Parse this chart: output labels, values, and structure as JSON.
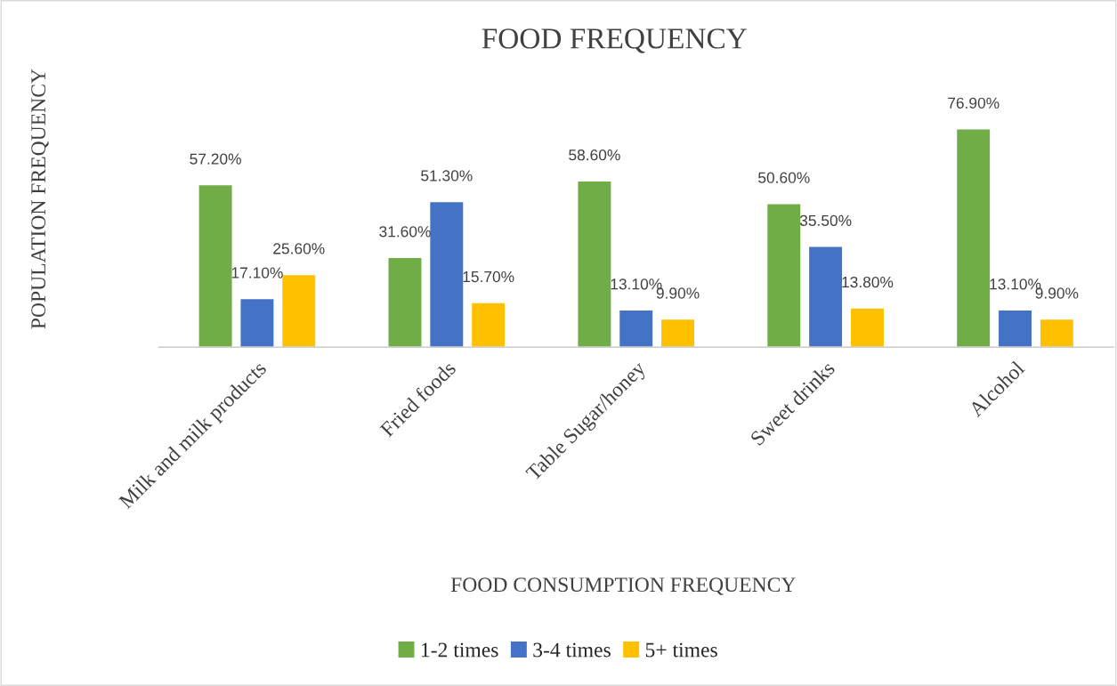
{
  "chart_data": {
    "type": "bar",
    "title": "FOOD FREQUENCY",
    "xlabel": "FOOD CONSUMPTION FREQUENCY",
    "ylabel": "POPULATION FREQUENCY",
    "categories": [
      "Milk and milk products",
      "Fried foods",
      "Table Sugar/honey",
      "Sweet drinks",
      "Alcohol"
    ],
    "series": [
      {
        "name": "1-2 times",
        "color": "#70ad47",
        "values": [
          57.2,
          31.6,
          58.6,
          50.6,
          76.9
        ],
        "value_labels": [
          "57.20%",
          "31.60%",
          "58.60%",
          "50.60%",
          "76.90%"
        ]
      },
      {
        "name": "3-4 times",
        "color": "#4472c4",
        "values": [
          17.1,
          51.3,
          13.1,
          35.5,
          13.1
        ],
        "value_labels": [
          "17.10%",
          "51.30%",
          "13.10%",
          "35.50%",
          "13.10%"
        ]
      },
      {
        "name": "5+ times",
        "color": "#ffc000",
        "values": [
          25.6,
          15.7,
          9.9,
          13.8,
          9.9
        ],
        "value_labels": [
          "25.60%",
          "15.70%",
          "9.90%",
          "13.80%",
          "9.90%"
        ]
      }
    ],
    "legend": "bottom",
    "grid": false
  }
}
